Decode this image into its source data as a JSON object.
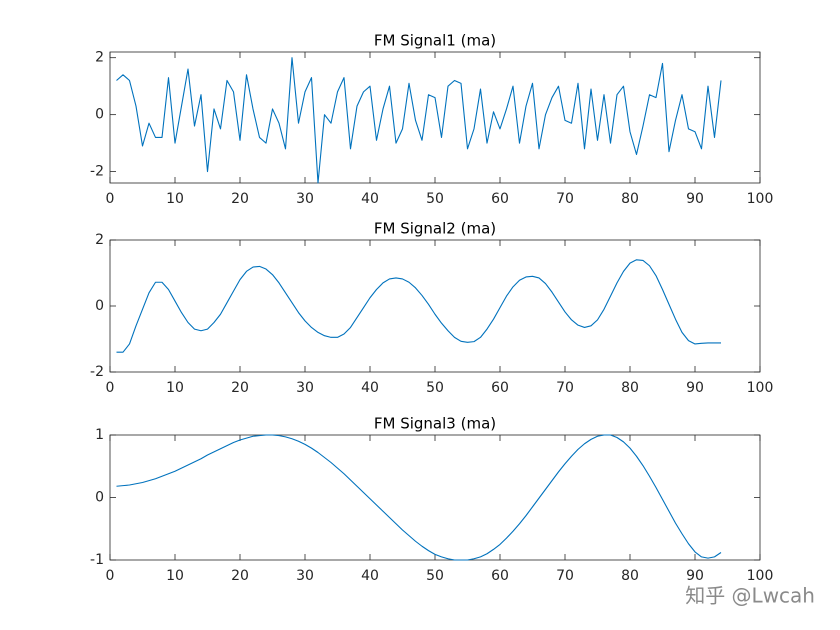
{
  "chart_data": [
    {
      "type": "line",
      "title": "FM Signal1 (ma)",
      "color": "#0072BD",
      "x": [
        1,
        2,
        3,
        4,
        5,
        6,
        7,
        8,
        9,
        10,
        11,
        12,
        13,
        14,
        15,
        16,
        17,
        18,
        19,
        20,
        21,
        22,
        23,
        24,
        25,
        26,
        27,
        28,
        29,
        30,
        31,
        32,
        33,
        34,
        35,
        36,
        37,
        38,
        39,
        40,
        41,
        42,
        43,
        44,
        45,
        46,
        47,
        48,
        49,
        50,
        51,
        52,
        53,
        54,
        55,
        56,
        57,
        58,
        59,
        60,
        61,
        62,
        63,
        64,
        65,
        66,
        67,
        68,
        69,
        70,
        71,
        72,
        73,
        74,
        75,
        76,
        77,
        78,
        79,
        80,
        81,
        82,
        83,
        84,
        85,
        86,
        87,
        88,
        89,
        90,
        91,
        92,
        93,
        94
      ],
      "values": [
        1.2,
        1.4,
        1.2,
        0.3,
        -1.1,
        -0.3,
        -0.8,
        -0.8,
        1.3,
        -1.0,
        0.3,
        1.6,
        -0.4,
        0.7,
        -2.0,
        0.2,
        -0.5,
        1.2,
        0.8,
        -0.9,
        1.4,
        0.2,
        -0.8,
        -1.0,
        0.2,
        -0.3,
        -1.2,
        2.0,
        -0.3,
        0.8,
        1.3,
        -2.4,
        0.0,
        -0.3,
        0.8,
        1.3,
        -1.2,
        0.3,
        0.8,
        1.0,
        -0.9,
        0.2,
        1.0,
        -1.0,
        -0.5,
        1.1,
        -0.2,
        -0.9,
        0.7,
        0.6,
        -0.8,
        1.0,
        1.2,
        1.1,
        -1.2,
        -0.5,
        0.9,
        -1.0,
        0.1,
        -0.5,
        0.2,
        1.0,
        -1.0,
        0.3,
        1.1,
        -1.2,
        0.0,
        0.6,
        1.0,
        -0.2,
        -0.3,
        1.1,
        -1.2,
        0.9,
        -0.9,
        0.7,
        -1.0,
        0.7,
        1.0,
        -0.6,
        -1.4,
        -0.4,
        0.7,
        0.6,
        1.8,
        -1.3,
        -0.2,
        0.7,
        -0.5,
        -0.6,
        -1.2,
        1.0,
        -0.8,
        1.2
      ],
      "xlim": [
        0,
        100
      ],
      "xticks": [
        0,
        10,
        20,
        30,
        40,
        50,
        60,
        70,
        80,
        90,
        100
      ],
      "ylim": [
        -2.4,
        2.2
      ],
      "yticks": [
        -2,
        0,
        2
      ]
    },
    {
      "type": "line",
      "title": "FM Signal2 (ma)",
      "color": "#0072BD",
      "x": [
        1,
        2,
        3,
        4,
        5,
        6,
        7,
        8,
        9,
        10,
        11,
        12,
        13,
        14,
        15,
        16,
        17,
        18,
        19,
        20,
        21,
        22,
        23,
        24,
        25,
        26,
        27,
        28,
        29,
        30,
        31,
        32,
        33,
        34,
        35,
        36,
        37,
        38,
        39,
        40,
        41,
        42,
        43,
        44,
        45,
        46,
        47,
        48,
        49,
        50,
        51,
        52,
        53,
        54,
        55,
        56,
        57,
        58,
        59,
        60,
        61,
        62,
        63,
        64,
        65,
        66,
        67,
        68,
        69,
        70,
        71,
        72,
        73,
        74,
        75,
        76,
        77,
        78,
        79,
        80,
        81,
        82,
        83,
        84,
        85,
        86,
        87,
        88,
        89,
        90,
        91,
        92,
        93,
        94
      ],
      "values": [
        -1.4,
        -1.4,
        -1.15,
        -0.6,
        -0.1,
        0.4,
        0.72,
        0.72,
        0.5,
        0.15,
        -0.2,
        -0.5,
        -0.7,
        -0.75,
        -0.7,
        -0.5,
        -0.25,
        0.1,
        0.45,
        0.8,
        1.05,
        1.18,
        1.2,
        1.12,
        0.95,
        0.7,
        0.4,
        0.1,
        -0.2,
        -0.45,
        -0.65,
        -0.8,
        -0.9,
        -0.95,
        -0.95,
        -0.85,
        -0.65,
        -0.35,
        -0.05,
        0.25,
        0.5,
        0.7,
        0.82,
        0.85,
        0.82,
        0.72,
        0.55,
        0.32,
        0.05,
        -0.25,
        -0.52,
        -0.75,
        -0.95,
        -1.07,
        -1.1,
        -1.08,
        -0.95,
        -0.7,
        -0.4,
        -0.05,
        0.3,
        0.58,
        0.78,
        0.88,
        0.9,
        0.85,
        0.68,
        0.42,
        0.12,
        -0.18,
        -0.42,
        -0.58,
        -0.65,
        -0.6,
        -0.42,
        -0.1,
        0.3,
        0.7,
        1.05,
        1.3,
        1.4,
        1.38,
        1.22,
        0.92,
        0.5,
        0.05,
        -0.4,
        -0.8,
        -1.05,
        -1.15,
        -1.13,
        -1.12,
        -1.12,
        -1.12
      ],
      "xlim": [
        0,
        100
      ],
      "xticks": [
        0,
        10,
        20,
        30,
        40,
        50,
        60,
        70,
        80,
        90,
        100
      ],
      "ylim": [
        -2,
        2
      ],
      "yticks": [
        -2,
        0,
        2
      ]
    },
    {
      "type": "line",
      "title": "FM Signal3 (ma)",
      "color": "#0072BD",
      "x": [
        1,
        2,
        3,
        4,
        5,
        6,
        7,
        8,
        9,
        10,
        11,
        12,
        13,
        14,
        15,
        16,
        17,
        18,
        19,
        20,
        21,
        22,
        23,
        24,
        25,
        26,
        27,
        28,
        29,
        30,
        31,
        32,
        33,
        34,
        35,
        36,
        37,
        38,
        39,
        40,
        41,
        42,
        43,
        44,
        45,
        46,
        47,
        48,
        49,
        50,
        51,
        52,
        53,
        54,
        55,
        56,
        57,
        58,
        59,
        60,
        61,
        62,
        63,
        64,
        65,
        66,
        67,
        68,
        69,
        70,
        71,
        72,
        73,
        74,
        75,
        76,
        77,
        78,
        79,
        80,
        81,
        82,
        83,
        84,
        85,
        86,
        87,
        88,
        89,
        90,
        91,
        92,
        93,
        94
      ],
      "values": [
        0.18,
        0.19,
        0.2,
        0.22,
        0.24,
        0.27,
        0.3,
        0.34,
        0.38,
        0.42,
        0.47,
        0.52,
        0.57,
        0.62,
        0.68,
        0.73,
        0.78,
        0.83,
        0.88,
        0.92,
        0.95,
        0.98,
        0.99,
        1.0,
        1.0,
        0.99,
        0.97,
        0.94,
        0.9,
        0.85,
        0.79,
        0.72,
        0.64,
        0.56,
        0.47,
        0.38,
        0.28,
        0.18,
        0.08,
        -0.02,
        -0.12,
        -0.22,
        -0.32,
        -0.42,
        -0.52,
        -0.61,
        -0.7,
        -0.78,
        -0.85,
        -0.91,
        -0.95,
        -0.98,
        -1.0,
        -1.0,
        -1.0,
        -0.98,
        -0.95,
        -0.9,
        -0.83,
        -0.75,
        -0.65,
        -0.54,
        -0.42,
        -0.29,
        -0.15,
        -0.01,
        0.13,
        0.27,
        0.41,
        0.54,
        0.66,
        0.77,
        0.86,
        0.93,
        0.98,
        1.0,
        1.0,
        0.96,
        0.89,
        0.79,
        0.66,
        0.51,
        0.34,
        0.16,
        -0.03,
        -0.22,
        -0.41,
        -0.58,
        -0.74,
        -0.87,
        -0.95,
        -0.97,
        -0.95,
        -0.88
      ],
      "xlim": [
        0,
        100
      ],
      "xticks": [
        0,
        10,
        20,
        30,
        40,
        50,
        60,
        70,
        80,
        90,
        100
      ],
      "ylim": [
        -1,
        1
      ],
      "yticks": [
        -1,
        0,
        1
      ]
    }
  ],
  "watermark": "知乎 @Lwcah"
}
